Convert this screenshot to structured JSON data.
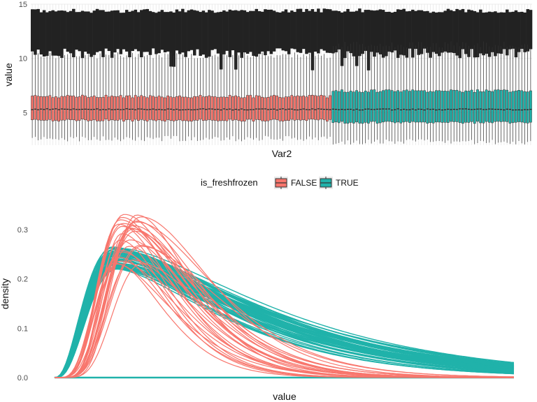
{
  "colors": {
    "false": "#f8766d",
    "true": "#20b2aa",
    "dark": "#222222",
    "grid": "#ebebeb"
  },
  "chart_data": [
    {
      "type": "boxplot",
      "xlabel": "Var2",
      "ylabel": "value",
      "ylim": [
        2,
        15
      ],
      "y_ticks": [
        5,
        10,
        15
      ],
      "x_tick_labels_visible": false,
      "series": [
        {
          "name": "FALSE",
          "group_range": "left",
          "box_count": 102,
          "q1": 4.3,
          "median": 5.3,
          "q3": 6.5,
          "whisker_low": 2.6,
          "whisker_high": 10.3
        },
        {
          "name": "TRUE",
          "group_range": "right",
          "box_count": 68,
          "q1": 4.1,
          "median": 5.3,
          "q3": 7.0,
          "whisker_low": 2.3,
          "whisker_high": 11.3
        }
      ],
      "outlier_band": {
        "low": 10.3,
        "high": 14.6,
        "color": "dark"
      }
    },
    {
      "type": "line",
      "xlabel": "value",
      "ylabel": "density",
      "ylim": [
        0,
        0.34
      ],
      "y_ticks": [
        "0.0",
        "0.1",
        "0.2",
        "0.3"
      ],
      "x_tick_labels_visible": false,
      "series": [
        {
          "name": "FALSE",
          "curve_count": 28,
          "peak_x_range": [
            0.13,
            0.19
          ],
          "peak_y_range": [
            0.23,
            0.34
          ]
        },
        {
          "name": "TRUE",
          "curve_count": 60,
          "peak_x_range": [
            0.12,
            0.14
          ],
          "peak_y_range": [
            0.22,
            0.265
          ]
        }
      ]
    }
  ],
  "legend": {
    "title": "is_freshfrozen",
    "items": [
      {
        "label": "FALSE",
        "color": "#f8766d"
      },
      {
        "label": "TRUE",
        "color": "#20b2aa"
      }
    ]
  }
}
